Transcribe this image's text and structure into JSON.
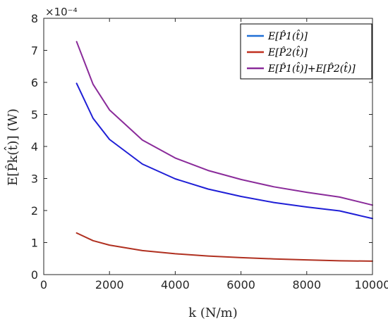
{
  "chart_data": {
    "type": "line",
    "title": "",
    "xlabel": "k (N/m)",
    "ylabel": "E[P̂k(t̂)] (W)",
    "y_multiplier": "×10⁻⁴",
    "xlim": [
      0,
      10000
    ],
    "ylim": [
      0,
      8
    ],
    "xticks": [
      0,
      2000,
      4000,
      6000,
      8000,
      10000
    ],
    "xtick_labels": [
      "0",
      "2000",
      "4000",
      "6000",
      "8000",
      "10000"
    ],
    "yticks": [
      0,
      1,
      2,
      3,
      4,
      5,
      6,
      7,
      8
    ],
    "ytick_labels": [
      "0",
      "1",
      "2",
      "3",
      "4",
      "5",
      "6",
      "7",
      "8"
    ],
    "grid": false,
    "legend_position": "top-right",
    "x": [
      1000,
      1500,
      2000,
      3000,
      4000,
      5000,
      6000,
      7000,
      8000,
      9000,
      10000
    ],
    "series": [
      {
        "name": "E[P̂1(t̂)]",
        "color": "#1f1fd6",
        "values": [
          5.97,
          4.88,
          4.22,
          3.45,
          2.99,
          2.67,
          2.44,
          2.25,
          2.11,
          1.99,
          1.75
        ]
      },
      {
        "name": "E[P̂2(t̂)]",
        "color": "#b03020",
        "values": [
          1.3,
          1.06,
          0.92,
          0.75,
          0.65,
          0.58,
          0.53,
          0.49,
          0.46,
          0.43,
          0.42
        ]
      },
      {
        "name": "E[P̂1(t̂)]+E[P̂2(t̂)]",
        "color": "#8a2b9a",
        "values": [
          7.27,
          5.94,
          5.14,
          4.2,
          3.64,
          3.25,
          2.97,
          2.74,
          2.57,
          2.42,
          2.17
        ]
      }
    ]
  },
  "legend": {
    "items": [
      {
        "label": "E[P̂1(t̂)]",
        "color": "#1f6fd6"
      },
      {
        "label": "E[P̂2(t̂)]",
        "color": "#c0301f"
      },
      {
        "label": "E[P̂1(t̂)]+E[P̂2(t̂)]",
        "color": "#8a2b9a"
      }
    ]
  }
}
